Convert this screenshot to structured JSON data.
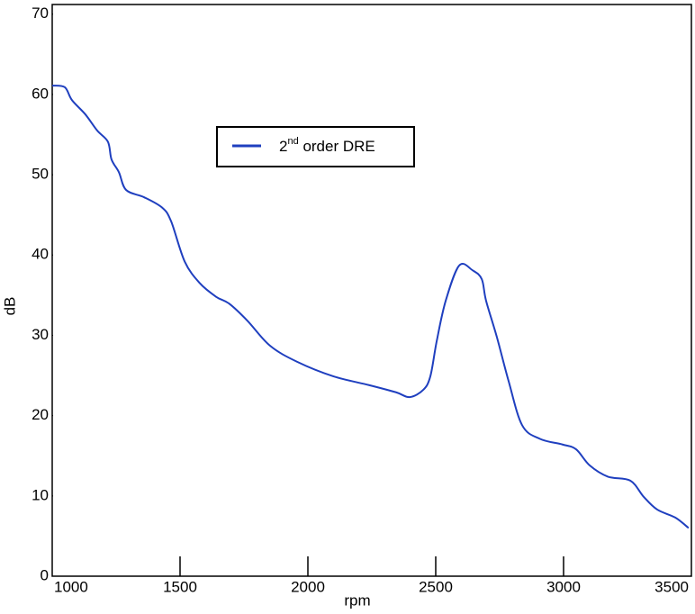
{
  "chart_data": {
    "type": "line",
    "x_label": "rpm",
    "y_label": "dB",
    "xlim": [
      1000,
      3500
    ],
    "xticks": [
      1000,
      1500,
      2000,
      2500,
      3000,
      3500
    ],
    "ylim": [
      0,
      71.2
    ],
    "yticks": [
      0,
      10,
      20,
      30,
      40,
      50,
      60,
      70
    ],
    "legend": "upper-center",
    "series": [
      {
        "name": "2nd order DRE",
        "color": "#1f3fbf",
        "x": [
          1000,
          1049,
          1077,
          1130,
          1176,
          1218,
          1232,
          1261,
          1289,
          1359,
          1430,
          1465,
          1518,
          1577,
          1641,
          1694,
          1764,
          1852,
          1958,
          2099,
          2239,
          2345,
          2398,
          2451,
          2479,
          2504,
          2539,
          2592,
          2644,
          2680,
          2697,
          2739,
          2785,
          2838,
          2908,
          2996,
          3049,
          3102,
          3173,
          3261,
          3313,
          3366,
          3437,
          3489
        ],
        "values": [
          61.1,
          60.9,
          59.3,
          57.5,
          55.5,
          54.1,
          51.9,
          50.3,
          48.1,
          47.2,
          45.9,
          44.2,
          39.2,
          36.5,
          34.8,
          33.9,
          31.8,
          28.7,
          26.7,
          24.9,
          23.8,
          22.9,
          22.3,
          23.2,
          24.9,
          29.3,
          34.3,
          38.7,
          38.1,
          37.0,
          34.3,
          29.8,
          24.3,
          18.8,
          17.1,
          16.4,
          15.8,
          13.8,
          12.4,
          11.9,
          9.9,
          8.3,
          7.3,
          6.0
        ]
      }
    ]
  }
}
